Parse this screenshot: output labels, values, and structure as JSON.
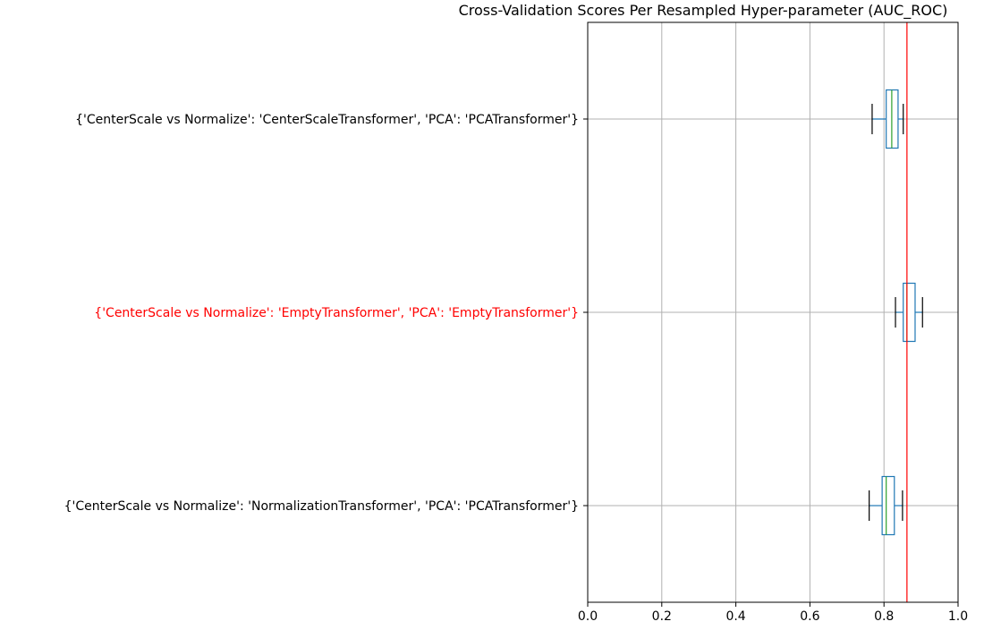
{
  "chart_data": {
    "type": "boxplot",
    "orientation": "horizontal",
    "title": "Cross-Validation Scores Per Resampled Hyper-parameter (AUC_ROC)",
    "xlabel": "",
    "ylabel": "",
    "xlim": [
      0.0,
      1.0
    ],
    "x_ticks": [
      0.0,
      0.2,
      0.4,
      0.6,
      0.8,
      1.0
    ],
    "x_tick_labels": [
      "0.0",
      "0.2",
      "0.4",
      "0.6",
      "0.8",
      "1.0"
    ],
    "grid": true,
    "reference_line": {
      "x": 0.862,
      "color": "#ff0000"
    },
    "categories": [
      {
        "label": "{'CenterScale vs Normalize': 'CenterScaleTransformer', 'PCA': 'PCATransformer'}",
        "label_color": "#000000",
        "whisker_low": 0.768,
        "q1": 0.806,
        "median": 0.821,
        "q3": 0.838,
        "whisker_high": 0.852
      },
      {
        "label": "{'CenterScale vs Normalize': 'EmptyTransformer', 'PCA': 'EmptyTransformer'}",
        "label_color": "#ff0000",
        "whisker_low": 0.831,
        "q1": 0.852,
        "median": 0.862,
        "q3": 0.884,
        "whisker_high": 0.904
      },
      {
        "label": "{'CenterScale vs Normalize': 'NormalizationTransformer', 'PCA': 'PCATransformer'}",
        "label_color": "#000000",
        "whisker_low": 0.76,
        "q1": 0.795,
        "median": 0.806,
        "q3": 0.828,
        "whisker_high": 0.85
      }
    ],
    "colors": {
      "box": "#1f77b4",
      "median": "#2ca02c",
      "whisker": "#1f77b4",
      "cap": "#000000",
      "grid": "#b0b0b0",
      "axis": "#000000"
    }
  }
}
